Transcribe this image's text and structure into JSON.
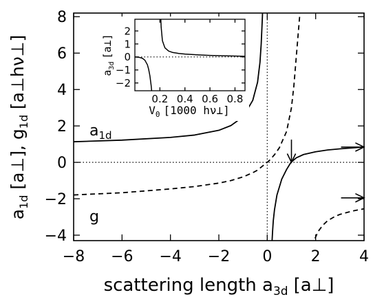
{
  "chart_data": [
    {
      "type": "line",
      "xlabel": {
        "main": "scattering length a",
        "sub": "3d",
        "unit": "[a⊥]"
      },
      "ylabel": {
        "p1": "a",
        "p1sub": "1d",
        "p2": " [a⊥], g",
        "p2sub": "1d",
        "p3": " [a⊥hν⊥]"
      },
      "xlim": [
        -8,
        4
      ],
      "ylim": [
        -4.3,
        8.2
      ],
      "xticks": [
        -8,
        -6,
        -4,
        -2,
        0,
        2,
        4
      ],
      "yticks": [
        -4,
        -2,
        0,
        2,
        4,
        6,
        8
      ],
      "reference_lines": {
        "horizontal_y": 0,
        "vertical_x": 0,
        "style": "dotted"
      },
      "series": [
        {
          "name": "a",
          "label_sub": "1d",
          "style": "solid",
          "branches": [
            {
              "x": [
                -8,
                -6,
                -4,
                -3,
                -2,
                -1.5,
                -1,
                -0.6,
                -0.4,
                -0.3,
                -0.25,
                -0.22,
                -0.2,
                -0.18
              ],
              "y": [
                1.13,
                1.22,
                1.37,
                1.5,
                1.76,
                2.02,
                2.5,
                3.4,
                4.4,
                5.5,
                6.5,
                7.4,
                8.0,
                8.9
              ]
            },
            {
              "x": [
                0.18,
                0.2,
                0.22,
                0.25,
                0.3,
                0.4,
                0.6,
                0.8,
                0.98,
                1.2,
                1.5,
                2,
                2.5,
                3,
                4
              ],
              "y": [
                -5.5,
                -4.3,
                -3.8,
                -3.2,
                -2.6,
                -1.8,
                -0.92,
                -0.39,
                0.0,
                0.25,
                0.43,
                0.58,
                0.68,
                0.74,
                0.84
              ]
            }
          ]
        },
        {
          "name": "g",
          "style": "dashed",
          "branches": [
            {
              "x": [
                -8,
                -6,
                -4,
                -3,
                -2,
                -1.5,
                -1,
                -0.6,
                -0.4,
                -0.2,
                -0.05,
                0,
                0.1,
                0.3,
                0.5,
                0.8,
                1.0,
                1.1,
                1.2,
                1.3,
                1.35,
                1.4,
                1.45
              ],
              "y": [
                -1.79,
                -1.67,
                -1.46,
                -1.33,
                -1.14,
                -1.0,
                -0.8,
                -0.57,
                -0.43,
                -0.21,
                -0.05,
                0,
                0.12,
                0.42,
                0.8,
                1.7,
                3.0,
                4.2,
                5.8,
                7.4,
                8.2,
                9.5,
                11
              ]
            },
            {
              "x": [
                1.85,
                1.95,
                2.1,
                2.3,
                2.5,
                2.8,
                3.0,
                3.5,
                4
              ],
              "y": [
                -4.6,
                -4.25,
                -3.8,
                -3.45,
                -3.2,
                -2.97,
                -2.86,
                -2.68,
                -2.55
              ]
            }
          ]
        }
      ],
      "arrows": [
        {
          "type": "vertical",
          "x": 1.0,
          "y_from": 1.25,
          "y_to": 0.0
        },
        {
          "type": "horizontal",
          "y": 0.84,
          "x_from": 3.05,
          "x_to": 4.0
        },
        {
          "type": "horizontal",
          "y": -1.95,
          "x_from": 3.05,
          "x_to": 4.0
        }
      ]
    },
    {
      "type": "line",
      "xlabel": {
        "main": "V",
        "sub": "0",
        "unit": "[1000 hν⊥]"
      },
      "ylabel": {
        "main": "a",
        "sub": "3d",
        "unit": "[a⊥]"
      },
      "xlim": [
        0.0,
        0.88
      ],
      "ylim": [
        -2.6,
        2.9
      ],
      "xticks": [
        0.2,
        0.4,
        0.6,
        0.8
      ],
      "yticks": [
        2,
        1,
        0,
        -1,
        -2
      ],
      "reference_lines": {
        "horizontal_y": 0,
        "style": "dotted"
      },
      "series": [
        {
          "style": "solid",
          "branches": [
            {
              "x": [
                0.0,
                0.03,
                0.06,
                0.08,
                0.1,
                0.11,
                0.12,
                0.13,
                0.14,
                0.145
              ],
              "y": [
                0.0,
                -0.02,
                -0.1,
                -0.25,
                -0.6,
                -0.95,
                -1.45,
                -2.2,
                -3.2,
                -3.8
              ]
            },
            {
              "x": [
                0.205,
                0.21,
                0.22,
                0.24,
                0.27,
                0.3,
                0.35,
                0.4,
                0.5,
                0.6,
                0.7,
                0.8,
                0.88
              ],
              "y": [
                3.5,
                2.3,
                1.25,
                0.7,
                0.45,
                0.35,
                0.27,
                0.22,
                0.16,
                0.12,
                0.09,
                0.07,
                0.05
              ]
            }
          ]
        }
      ]
    }
  ],
  "annotations": {
    "a1d_label": {
      "main": "a",
      "sub": "1d"
    },
    "g_label": "g"
  }
}
